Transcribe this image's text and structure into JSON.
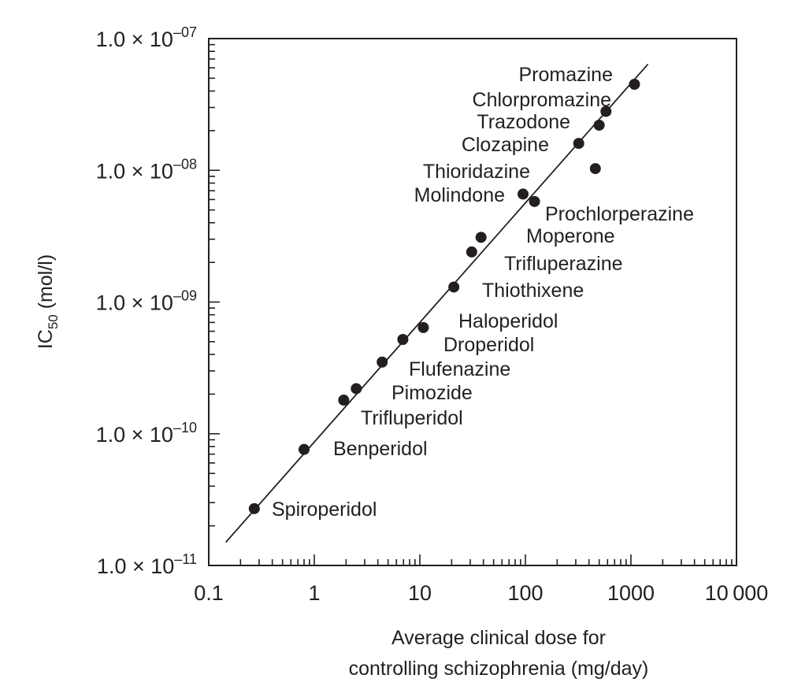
{
  "chart_data": {
    "type": "scatter",
    "title": "",
    "xlabel": [
      "Average clinical dose for",
      "controlling schizophrenia (mg/day)"
    ],
    "ylabel": {
      "main": "IC",
      "subscript": "50",
      "unit": " (mol/l)"
    },
    "xscale": "log",
    "yscale": "log",
    "xlim": [
      0.1,
      10000
    ],
    "ylim": [
      1e-11,
      1e-07
    ],
    "grid": false,
    "legend": "none",
    "colors": {
      "ink": "#231f20",
      "background": "#ffffff"
    },
    "x_ticks": [
      {
        "value": 0.1,
        "label": "0.1"
      },
      {
        "value": 1,
        "label": "1"
      },
      {
        "value": 10,
        "label": "10"
      },
      {
        "value": 100,
        "label": "100"
      },
      {
        "value": 1000,
        "label": "1000"
      },
      {
        "value": 10000,
        "label": "10 000"
      }
    ],
    "y_ticks": [
      {
        "value": 1e-07,
        "mantissa": "1.0",
        "times": "×",
        "base": "10",
        "exponent": "–07"
      },
      {
        "value": 1e-08,
        "mantissa": "1.0",
        "times": "×",
        "base": "10",
        "exponent": "–08"
      },
      {
        "value": 1e-09,
        "mantissa": "1.0",
        "times": "×",
        "base": "10",
        "exponent": "–09"
      },
      {
        "value": 1e-10,
        "mantissa": "1.0",
        "times": "×",
        "base": "10",
        "exponent": "–10"
      },
      {
        "value": 1e-11,
        "mantissa": "1.0",
        "times": "×",
        "base": "10",
        "exponent": "–11"
      }
    ],
    "points": [
      {
        "x": 0.27,
        "y": 2.7e-11
      },
      {
        "x": 0.8,
        "y": 7.6e-11
      },
      {
        "x": 1.9,
        "y": 1.8e-10
      },
      {
        "x": 2.5,
        "y": 2.2e-10
      },
      {
        "x": 4.4,
        "y": 3.5e-10
      },
      {
        "x": 6.9,
        "y": 5.2e-10
      },
      {
        "x": 10.8,
        "y": 6.4e-10
      },
      {
        "x": 21,
        "y": 1.3e-09
      },
      {
        "x": 31,
        "y": 2.4e-09
      },
      {
        "x": 38,
        "y": 3.1e-09
      },
      {
        "x": 95,
        "y": 6.6e-09
      },
      {
        "x": 122,
        "y": 5.8e-09
      },
      {
        "x": 320,
        "y": 1.6e-08
      },
      {
        "x": 460,
        "y": 1.03e-08
      },
      {
        "x": 500,
        "y": 2.2e-08
      },
      {
        "x": 580,
        "y": 2.8e-08
      },
      {
        "x": 1080,
        "y": 4.5e-08
      }
    ],
    "fit_line": {
      "x": [
        0.145,
        1450
      ],
      "y": [
        1.5e-11,
        6.4e-08
      ]
    },
    "labels": [
      {
        "text": "Promazine",
        "anchor": "end"
      },
      {
        "text": "Chlorpromazine",
        "anchor": "end"
      },
      {
        "text": "Trazodone",
        "anchor": "end"
      },
      {
        "text": "Clozapine",
        "anchor": "end"
      },
      {
        "text": "Thioridazine",
        "anchor": "end"
      },
      {
        "text": "Molindone",
        "anchor": "end"
      },
      {
        "text": "Prochlorperazine",
        "anchor": "start"
      },
      {
        "text": "Moperone",
        "anchor": "start"
      },
      {
        "text": "Trifluperazine",
        "anchor": "start"
      },
      {
        "text": "Thiothixene",
        "anchor": "start"
      },
      {
        "text": "Haloperidol",
        "anchor": "start"
      },
      {
        "text": "Droperidol",
        "anchor": "start"
      },
      {
        "text": "Flufenazine",
        "anchor": "start"
      },
      {
        "text": "Pimozide",
        "anchor": "start"
      },
      {
        "text": "Trifluperidol",
        "anchor": "start"
      },
      {
        "text": "Benperidol",
        "anchor": "start"
      },
      {
        "text": "Spiroperidol",
        "anchor": "start"
      }
    ]
  }
}
